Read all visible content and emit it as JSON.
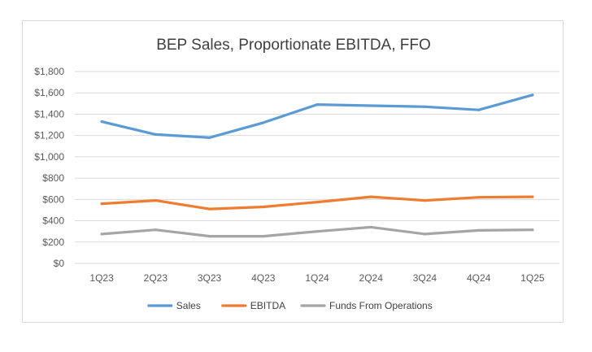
{
  "chart_data": {
    "type": "line",
    "title": "BEP Sales, Proportionate EBITDA, FFO",
    "xlabel": "",
    "ylabel": "",
    "categories": [
      "1Q23",
      "2Q23",
      "3Q23",
      "4Q23",
      "1Q24",
      "2Q24",
      "3Q24",
      "4Q24",
      "1Q25"
    ],
    "ylim": [
      0,
      1800
    ],
    "yticks": [
      0,
      200,
      400,
      600,
      800,
      1000,
      1200,
      1400,
      1600,
      1800
    ],
    "ytick_labels": [
      "$0",
      "$200",
      "$400",
      "$600",
      "$800",
      "$1,000",
      "$1,200",
      "$1,400",
      "$1,600",
      "$1,800"
    ],
    "grid": true,
    "legend_position": "bottom",
    "series": [
      {
        "name": "Sales",
        "color": "#5B9BD5",
        "values": [
          1330,
          1210,
          1180,
          1320,
          1490,
          1480,
          1470,
          1440,
          1580
        ]
      },
      {
        "name": "EBITDA",
        "color": "#ED7D31",
        "values": [
          560,
          590,
          510,
          530,
          575,
          625,
          590,
          620,
          625
        ]
      },
      {
        "name": "Funds From Operations",
        "color": "#A5A5A5",
        "values": [
          275,
          315,
          255,
          255,
          300,
          340,
          275,
          310,
          315
        ]
      }
    ]
  }
}
